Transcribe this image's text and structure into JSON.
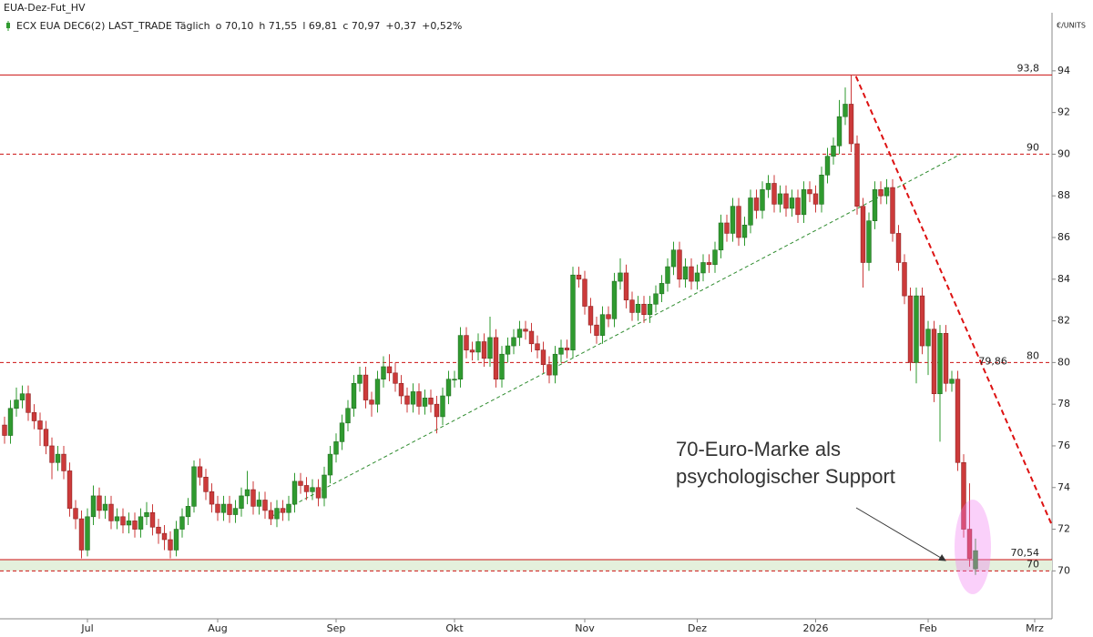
{
  "chart_data": {
    "type": "candlestick",
    "title": "EUA-Dez-Fut_HV",
    "legend": [
      {
        "text": "ECX EUA DEC6(2) LAST_TRADE Täglich",
        "color": "#222222"
      },
      {
        "text": "o 70,10",
        "color": "#c0392b"
      },
      {
        "text": "h 71,55",
        "color": "#222222"
      },
      {
        "text": "l 69,81",
        "color": "#222222"
      },
      {
        "text": "c 70,97",
        "color": "#2e9a2e"
      },
      {
        "text": "+0,37",
        "color": "#2e9a2e"
      },
      {
        "text": "+0,52%",
        "color": "#2e9a2e"
      }
    ],
    "unit": "€/UNITS",
    "up_color": "#2f9a2f",
    "down_color": "#cc3a3a",
    "categories": [
      null,
      null,
      null,
      null,
      null,
      null,
      null,
      null,
      null,
      null,
      null,
      null,
      null,
      null,
      "Jul",
      null,
      null,
      null,
      null,
      null,
      null,
      null,
      null,
      null,
      null,
      null,
      null,
      null,
      null,
      null,
      null,
      null,
      null,
      null,
      null,
      null,
      "Aug",
      null,
      null,
      null,
      null,
      null,
      null,
      null,
      null,
      null,
      null,
      null,
      null,
      null,
      null,
      null,
      null,
      null,
      null,
      null,
      "Sep",
      null,
      null,
      null,
      null,
      null,
      null,
      null,
      null,
      null,
      null,
      null,
      null,
      null,
      null,
      null,
      null,
      null,
      null,
      null,
      "Okt",
      null,
      null,
      null,
      null,
      null,
      null,
      null,
      null,
      null,
      null,
      null,
      null,
      null,
      null,
      null,
      null,
      null,
      null,
      null,
      null,
      null,
      "Nov",
      null,
      null,
      null,
      null,
      null,
      null,
      null,
      null,
      null,
      null,
      null,
      null,
      null,
      null,
      null,
      null,
      null,
      null,
      "Dez",
      null,
      null,
      null,
      null,
      null,
      null,
      null,
      null,
      null,
      null,
      null,
      null,
      null,
      null,
      null,
      null,
      null,
      null,
      null,
      "2026",
      null,
      null,
      null,
      null,
      null,
      null,
      null,
      null,
      null,
      null,
      null,
      null,
      null,
      null,
      null,
      null,
      null,
      null,
      "Feb",
      null,
      null,
      null,
      null,
      null,
      null,
      null,
      null,
      null,
      null,
      null,
      null,
      null,
      null,
      null,
      null,
      null,
      "Mrz",
      null,
      null
    ],
    "open": [
      77.0,
      76.5,
      77.8,
      78.2,
      78.5,
      77.6,
      77.2,
      76.8,
      76.0,
      75.2,
      75.6,
      74.8,
      73.0,
      72.5,
      71.0,
      72.6,
      73.6,
      72.9,
      73.2,
      72.4,
      72.6,
      72.2,
      72.4,
      72.0,
      72.6,
      72.8,
      72.1,
      71.8,
      71.5,
      71.0,
      72.0,
      72.6,
      73.1,
      75.0,
      74.5,
      73.8,
      73.2,
      72.8,
      73.2,
      72.7,
      73.0,
      73.6,
      73.9,
      73.1,
      73.4,
      72.9,
      72.5,
      73.0,
      72.8,
      73.2,
      74.3,
      74.1,
      73.8,
      74.0,
      73.5,
      74.6,
      75.6,
      76.2,
      77.1,
      77.8,
      79.0,
      79.4,
      78.2,
      78.0,
      79.2,
      79.8,
      79.5,
      79.0,
      78.4,
      78.0,
      78.6,
      77.9,
      78.3,
      78.0,
      77.4,
      78.4,
      79.2,
      79.2,
      81.3,
      80.6,
      80.5,
      81.0,
      80.2,
      81.2,
      79.2,
      80.4,
      80.8,
      81.2,
      81.6,
      81.5,
      80.9,
      80.6,
      79.9,
      79.4,
      80.4,
      80.7,
      80.6,
      84.2,
      84.0,
      82.7,
      81.8,
      81.3,
      82.3,
      82.1,
      83.9,
      84.3,
      83.0,
      82.4,
      82.8,
      82.3,
      82.8,
      83.3,
      83.8,
      84.6,
      85.4,
      84.0,
      84.6,
      83.9,
      84.3,
      84.8,
      84.7,
      85.4,
      86.7,
      86.2,
      87.5,
      86.0,
      86.6,
      87.9,
      87.3,
      88.3,
      88.6,
      87.6,
      88.1,
      87.4,
      87.9,
      87.1,
      88.3,
      88.1,
      87.6,
      89.0,
      89.9,
      90.4,
      91.8,
      92.4,
      90.5,
      87.5,
      84.8,
      86.8,
      88.3,
      88.0,
      88.4,
      86.2,
      84.8,
      83.2,
      80.0,
      83.2,
      80.8,
      81.6,
      78.5,
      81.4,
      79.0,
      79.2,
      75.2,
      72.0,
      70.1,
      null,
      null,
      null,
      null,
      null,
      null,
      null,
      null,
      null,
      null,
      null,
      null
    ],
    "high": [
      77.4,
      78.2,
      78.8,
      78.9,
      78.9,
      78.0,
      77.6,
      77.2,
      76.4,
      76.0,
      76.0,
      75.2,
      73.4,
      72.9,
      73.0,
      74.1,
      74.0,
      73.6,
      73.6,
      73.0,
      73.0,
      72.8,
      72.8,
      73.0,
      73.3,
      73.2,
      72.5,
      72.2,
      71.9,
      72.4,
      73.0,
      73.5,
      75.3,
      75.4,
      74.9,
      74.2,
      73.6,
      73.6,
      73.6,
      73.4,
      74.0,
      74.8,
      74.3,
      73.8,
      73.8,
      73.3,
      73.4,
      73.4,
      73.6,
      74.7,
      74.7,
      74.5,
      74.4,
      74.4,
      75.0,
      76.0,
      76.6,
      77.5,
      78.2,
      79.4,
      79.8,
      79.8,
      78.6,
      79.6,
      80.3,
      80.4,
      80.0,
      79.4,
      78.8,
      79.0,
      79.0,
      78.7,
      78.7,
      78.4,
      78.8,
      79.6,
      79.6,
      81.7,
      81.7,
      81.0,
      81.4,
      81.4,
      82.2,
      81.6,
      80.8,
      81.2,
      81.6,
      82.0,
      82.0,
      81.9,
      81.3,
      81.0,
      80.3,
      80.8,
      81.1,
      81.1,
      84.6,
      84.6,
      84.4,
      83.1,
      82.2,
      82.7,
      82.7,
      84.3,
      85.0,
      84.7,
      83.4,
      83.2,
      83.2,
      83.2,
      83.7,
      84.2,
      85.0,
      85.8,
      85.8,
      85.0,
      85.0,
      84.7,
      85.2,
      85.2,
      85.8,
      87.1,
      87.1,
      87.9,
      87.9,
      87.0,
      88.3,
      88.3,
      88.7,
      89.0,
      89.0,
      88.5,
      88.5,
      88.3,
      88.3,
      88.7,
      88.7,
      88.5,
      89.4,
      90.3,
      90.8,
      92.6,
      93.2,
      93.8,
      90.9,
      87.9,
      87.2,
      88.7,
      88.7,
      88.8,
      88.8,
      86.6,
      85.2,
      83.6,
      83.6,
      83.6,
      82.0,
      82.0,
      81.8,
      81.8,
      79.6,
      79.6,
      75.6,
      74.2,
      71.55,
      null,
      null,
      null,
      null,
      null,
      null,
      null,
      null,
      null,
      null,
      null,
      null
    ],
    "low": [
      76.1,
      76.1,
      77.4,
      77.8,
      77.2,
      76.8,
      76.0,
      75.6,
      74.4,
      74.8,
      74.4,
      72.6,
      72.0,
      70.6,
      70.7,
      72.2,
      72.5,
      72.5,
      72.0,
      72.0,
      71.8,
      71.8,
      71.6,
      71.6,
      72.2,
      71.7,
      71.3,
      71.0,
      70.6,
      70.7,
      71.6,
      72.2,
      72.8,
      74.1,
      73.4,
      72.8,
      72.4,
      72.4,
      72.3,
      72.3,
      72.6,
      73.2,
      72.7,
      72.7,
      72.5,
      72.2,
      72.1,
      72.4,
      72.4,
      72.8,
      73.7,
      73.4,
      73.4,
      73.1,
      73.1,
      74.2,
      75.2,
      75.8,
      76.7,
      77.4,
      78.6,
      77.8,
      77.4,
      77.6,
      78.8,
      79.1,
      78.6,
      78.0,
      77.6,
      77.6,
      77.5,
      77.5,
      77.6,
      76.6,
      77.0,
      78.0,
      78.8,
      78.8,
      80.2,
      80.1,
      80.1,
      79.8,
      79.8,
      78.8,
      78.8,
      80.0,
      80.4,
      80.8,
      81.1,
      80.5,
      80.2,
      79.5,
      79.0,
      79.0,
      80.0,
      80.2,
      80.2,
      83.6,
      82.3,
      81.4,
      80.9,
      80.9,
      81.7,
      81.7,
      83.5,
      82.6,
      82.0,
      82.0,
      81.9,
      81.9,
      82.4,
      82.9,
      83.4,
      84.2,
      83.6,
      83.6,
      83.5,
      83.5,
      83.9,
      84.3,
      84.3,
      85.0,
      85.8,
      85.8,
      85.6,
      85.6,
      86.2,
      86.9,
      86.9,
      87.9,
      87.2,
      87.2,
      87.0,
      87.0,
      86.7,
      86.7,
      87.7,
      87.2,
      87.2,
      88.6,
      89.5,
      90.0,
      91.4,
      90.1,
      87.1,
      83.6,
      84.4,
      86.4,
      87.6,
      87.6,
      85.8,
      84.4,
      82.8,
      79.6,
      79.0,
      80.4,
      79.4,
      78.1,
      76.2,
      78.6,
      78.6,
      74.8,
      71.6,
      70.2,
      69.81,
      null,
      null,
      null,
      null,
      null,
      null,
      null,
      null,
      null,
      null,
      null,
      null
    ],
    "close": [
      76.5,
      77.8,
      78.2,
      78.5,
      77.6,
      77.2,
      76.8,
      76.0,
      75.2,
      75.6,
      74.8,
      73.0,
      72.5,
      71.0,
      72.6,
      73.6,
      72.9,
      73.2,
      72.4,
      72.6,
      72.2,
      72.4,
      72.0,
      72.6,
      72.8,
      72.1,
      71.8,
      71.5,
      71.0,
      72.0,
      72.6,
      73.1,
      75.0,
      74.5,
      73.8,
      73.2,
      72.8,
      73.2,
      72.7,
      73.0,
      73.6,
      73.9,
      73.1,
      73.4,
      72.9,
      72.5,
      73.0,
      72.8,
      73.2,
      74.3,
      74.1,
      73.8,
      74.0,
      73.5,
      74.6,
      75.6,
      76.2,
      77.1,
      77.8,
      79.0,
      79.4,
      78.2,
      78.0,
      79.2,
      79.8,
      79.5,
      79.0,
      78.4,
      78.0,
      78.6,
      77.9,
      78.3,
      78.0,
      77.4,
      78.4,
      79.2,
      79.2,
      81.3,
      80.6,
      80.5,
      81.0,
      80.2,
      81.2,
      79.2,
      80.4,
      80.8,
      81.2,
      81.6,
      81.5,
      80.9,
      80.6,
      79.9,
      79.4,
      80.4,
      80.7,
      80.6,
      84.2,
      84.0,
      82.7,
      81.8,
      81.3,
      82.3,
      82.1,
      83.9,
      84.3,
      83.0,
      82.4,
      82.8,
      82.3,
      82.8,
      83.3,
      83.8,
      84.6,
      85.4,
      84.0,
      84.6,
      83.9,
      84.3,
      84.8,
      84.7,
      85.4,
      86.7,
      86.2,
      87.5,
      86.0,
      86.6,
      87.9,
      87.3,
      88.3,
      88.6,
      87.6,
      88.1,
      87.4,
      87.9,
      87.1,
      88.3,
      88.1,
      87.6,
      89.0,
      89.9,
      90.4,
      91.8,
      92.4,
      90.5,
      87.5,
      84.8,
      86.8,
      88.3,
      88.0,
      88.4,
      86.2,
      84.8,
      83.2,
      80.0,
      83.2,
      80.8,
      81.6,
      78.5,
      81.4,
      79.0,
      79.2,
      75.2,
      72.0,
      70.6,
      70.97,
      null,
      null,
      null,
      null,
      null,
      null,
      null,
      null,
      null,
      null,
      null,
      null
    ],
    "ylim": [
      67.7,
      97.4
    ],
    "yticks": [
      70,
      72,
      74,
      76,
      78,
      80,
      82,
      84,
      86,
      88,
      90,
      92,
      94
    ],
    "levels": [
      {
        "value": 93.8,
        "label": "93,8",
        "style": "solid"
      },
      {
        "value": 90,
        "label": "90",
        "style": "dashed"
      },
      {
        "value": 80,
        "label": "80",
        "style": "dashed"
      },
      {
        "value": 70.54,
        "label": "70,54",
        "style": "solid"
      },
      {
        "value": 70,
        "label": "70",
        "style": "dashed"
      }
    ],
    "level_color": "#cc1111",
    "band_color": "#e4f0dc",
    "trendlines": [
      {
        "color": "#2e8b2e",
        "from": [
          45,
          72.6
        ],
        "to": [
          161.5,
          90.0
        ]
      },
      {
        "color": "#dd1111",
        "from": [
          143.8,
          93.74
        ],
        "to": [
          176.9,
          72.2
        ],
        "marker": {
          "value": 79.86,
          "label": "79,86"
        }
      }
    ],
    "annotation": {
      "lines": [
        "70-Euro-Marke als",
        "psychologischer Support"
      ]
    }
  }
}
